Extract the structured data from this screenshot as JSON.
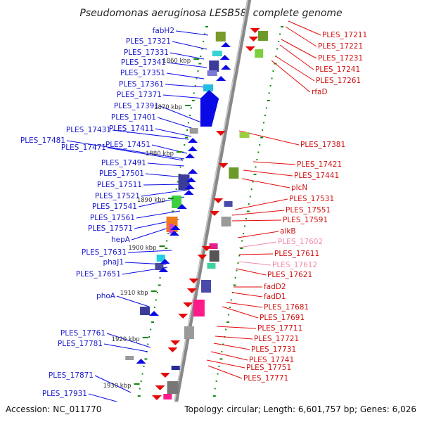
{
  "title": "Pseudomonas aeruginosa LESB58, complete genome",
  "footer": {
    "accession": "Accession: NC_011770",
    "topology": "Topology: circular; Length: 6,601,757 bp; Genes: 6,026"
  },
  "scale_labels": [
    "1860 kbp",
    "1870 kbp",
    "1880 kbp",
    "1890 kbp",
    "1900 kbp",
    "1910 kbp",
    "1920 kbp",
    "1930 kbp"
  ],
  "left_labels": [
    "fabH2",
    "PLES_17321",
    "PLES_17331",
    "PLES_17341",
    "PLES_17351",
    "PLES_17361",
    "PLES_17371",
    "PLES_17391",
    "PLES_17401",
    "PLES_17411",
    "PLES_17431",
    "PLES_17451",
    "PLES_17481",
    "PLES_17471",
    "PLES_17491",
    "PLES_17501",
    "PLES_17511",
    "PLES_17521",
    "PLES_17541",
    "PLES_17561",
    "PLES_17571",
    "hepA",
    "PLES_17631",
    "phaJ1",
    "PLES_17651",
    "phoA",
    "PLES_17761",
    "PLES_17781",
    "PLES_17871",
    "PLES_17931"
  ],
  "right_labels": [
    {
      "text": "PLES_17211",
      "style": "red"
    },
    {
      "text": "PLES_17221",
      "style": "red"
    },
    {
      "text": "PLES_17231",
      "style": "red"
    },
    {
      "text": "PLES_17241",
      "style": "red"
    },
    {
      "text": "PLES_17261",
      "style": "red"
    },
    {
      "text": "rfaD",
      "style": "red"
    },
    {
      "text": "PLES_17381",
      "style": "red"
    },
    {
      "text": "PLES_17421",
      "style": "red"
    },
    {
      "text": "PLES_17441",
      "style": "red"
    },
    {
      "text": "plcN",
      "style": "red"
    },
    {
      "text": "PLES_17531",
      "style": "red"
    },
    {
      "text": "PLES_17551",
      "style": "red"
    },
    {
      "text": "PLES_17591",
      "style": "red"
    },
    {
      "text": "alkB",
      "style": "red"
    },
    {
      "text": "PLES_17602",
      "style": "pink"
    },
    {
      "text": "PLES_17611",
      "style": "red"
    },
    {
      "text": "PLES_17612",
      "style": "pink"
    },
    {
      "text": "PLES_17621",
      "style": "red"
    },
    {
      "text": "fadD2",
      "style": "red"
    },
    {
      "text": "fadD1",
      "style": "red"
    },
    {
      "text": "PLES_17681",
      "style": "red"
    },
    {
      "text": "PLES_17691",
      "style": "red"
    },
    {
      "text": "PLES_17711",
      "style": "red"
    },
    {
      "text": "PLES_17721",
      "style": "red"
    },
    {
      "text": "PLES_17731",
      "style": "red"
    },
    {
      "text": "PLES_17741",
      "style": "red"
    },
    {
      "text": "PLES_17751",
      "style": "red"
    },
    {
      "text": "PLES_17771",
      "style": "red"
    }
  ],
  "colors": {
    "forward": "#0a0ae6",
    "reverse": "#e60a0a",
    "pseudo": "#f08aa8",
    "backbone": "#888888",
    "tick": "#118811"
  }
}
